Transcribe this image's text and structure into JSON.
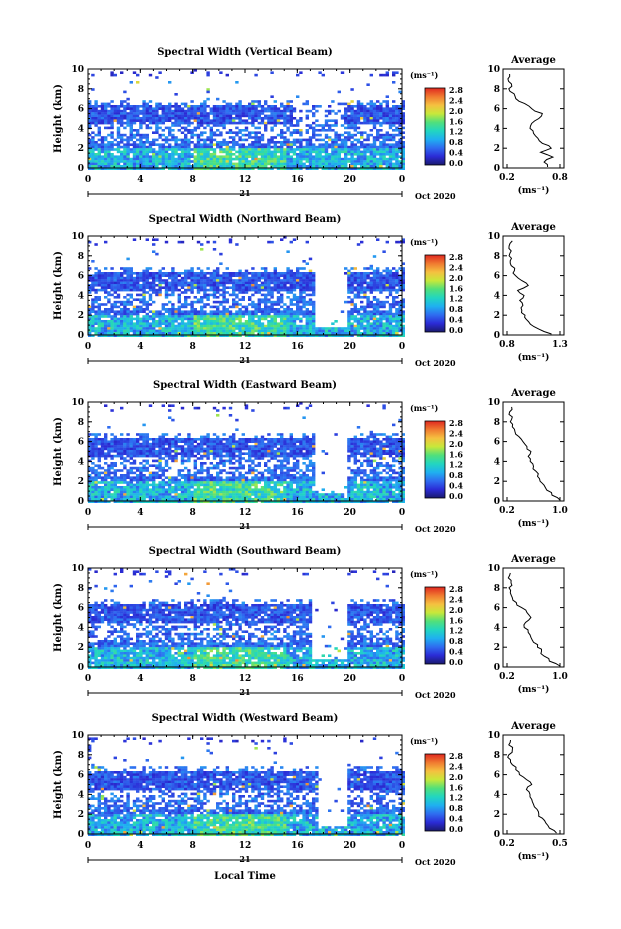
{
  "figure": {
    "xlabel": "Local Time",
    "date_label": "Oct 2020",
    "day_label": "21",
    "colorbar_unit": "(ms⁻¹)",
    "colorbar_ticks": [
      "0.0",
      "0.4",
      "0.8",
      "1.2",
      "1.6",
      "2.0",
      "2.4",
      "2.8"
    ],
    "colorbar_stops": [
      "#1a1a6e",
      "#2b2bd6",
      "#2f6cf0",
      "#1fb0f0",
      "#22d6c0",
      "#52e07a",
      "#c8e83a",
      "#f5c040",
      "#f07a30",
      "#e02820"
    ]
  },
  "chart_data": [
    {
      "type": "heatmap",
      "title": "Spectral Width (Vertical Beam)",
      "ylabel": "Height (km)",
      "x_ticks": [
        "0",
        "4",
        "8",
        "12",
        "16",
        "20",
        "0"
      ],
      "y_ticks": [
        "0",
        "2",
        "4",
        "6",
        "8",
        "10"
      ],
      "xlim": [
        0,
        24
      ],
      "ylim": [
        0,
        10
      ],
      "clim": [
        0,
        3.0
      ],
      "gap": [
        15.8,
        15.8
      ],
      "avg_title": "Average",
      "avg_xlabel": "(ms⁻¹)",
      "avg_x_ticks": [
        "0.2",
        "0.8"
      ],
      "avg_xlim": [
        0.2,
        0.8
      ],
      "average_profile": [
        [
          0.66,
          0.1
        ],
        [
          0.62,
          0.6
        ],
        [
          0.72,
          1.1
        ],
        [
          0.58,
          1.6
        ],
        [
          0.7,
          2.0
        ],
        [
          0.6,
          2.5
        ],
        [
          0.55,
          3.0
        ],
        [
          0.5,
          3.5
        ],
        [
          0.46,
          4.0
        ],
        [
          0.48,
          4.5
        ],
        [
          0.56,
          5.0
        ],
        [
          0.6,
          5.5
        ],
        [
          0.48,
          6.0
        ],
        [
          0.4,
          6.5
        ],
        [
          0.3,
          7.0
        ],
        [
          0.28,
          7.5
        ],
        [
          0.22,
          8.0
        ],
        [
          0.25,
          8.5
        ],
        [
          0.21,
          9.0
        ],
        [
          0.23,
          9.5
        ]
      ]
    },
    {
      "type": "heatmap",
      "title": "Spectral Width (Northward Beam)",
      "ylabel": "Height (km)",
      "x_ticks": [
        "0",
        "4",
        "8",
        "12",
        "16",
        "20",
        "0"
      ],
      "y_ticks": [
        "0",
        "2",
        "4",
        "6",
        "8",
        "10"
      ],
      "xlim": [
        0,
        24
      ],
      "ylim": [
        0,
        10
      ],
      "clim": [
        0,
        3.0
      ],
      "gap": [
        17.2,
        19.6
      ],
      "avg_title": "Average",
      "avg_xlabel": "(ms⁻¹)",
      "avg_x_ticks": [
        "0.8",
        "1.3"
      ],
      "avg_xlim": [
        0.8,
        1.3
      ],
      "average_profile": [
        [
          1.22,
          0.1
        ],
        [
          1.1,
          0.6
        ],
        [
          1.02,
          1.1
        ],
        [
          0.98,
          1.6
        ],
        [
          0.97,
          2.0
        ],
        [
          0.94,
          2.5
        ],
        [
          0.95,
          3.0
        ],
        [
          0.92,
          3.5
        ],
        [
          0.96,
          4.0
        ],
        [
          0.9,
          4.5
        ],
        [
          1.0,
          5.0
        ],
        [
          0.94,
          5.5
        ],
        [
          0.88,
          6.0
        ],
        [
          0.87,
          6.5
        ],
        [
          0.84,
          7.0
        ],
        [
          0.83,
          7.5
        ],
        [
          0.82,
          8.0
        ],
        [
          0.84,
          8.5
        ],
        [
          0.82,
          9.0
        ],
        [
          0.85,
          9.5
        ]
      ]
    },
    {
      "type": "heatmap",
      "title": "Spectral Width (Eastward Beam)",
      "ylabel": "Height (km)",
      "x_ticks": [
        "0",
        "4",
        "8",
        "12",
        "16",
        "20",
        "0"
      ],
      "y_ticks": [
        "0",
        "2",
        "4",
        "6",
        "8",
        "10"
      ],
      "xlim": [
        0,
        24
      ],
      "ylim": [
        0,
        10
      ],
      "clim": [
        0,
        3.0
      ],
      "gap": [
        17.2,
        19.8
      ],
      "avg_title": "Average",
      "avg_xlabel": "(ms⁻¹)",
      "avg_x_ticks": [
        "0.2",
        "1.0"
      ],
      "avg_xlim": [
        0.2,
        1.0
      ],
      "average_profile": [
        [
          1.0,
          0.1
        ],
        [
          0.88,
          0.6
        ],
        [
          0.8,
          1.1
        ],
        [
          0.76,
          1.6
        ],
        [
          0.7,
          2.0
        ],
        [
          0.66,
          2.5
        ],
        [
          0.64,
          3.0
        ],
        [
          0.6,
          3.5
        ],
        [
          0.55,
          4.0
        ],
        [
          0.52,
          4.5
        ],
        [
          0.56,
          5.0
        ],
        [
          0.5,
          5.5
        ],
        [
          0.44,
          6.0
        ],
        [
          0.38,
          6.5
        ],
        [
          0.32,
          7.0
        ],
        [
          0.28,
          7.5
        ],
        [
          0.25,
          8.0
        ],
        [
          0.28,
          8.5
        ],
        [
          0.24,
          9.0
        ],
        [
          0.27,
          9.5
        ]
      ]
    },
    {
      "type": "heatmap",
      "title": "Spectral Width (Southward Beam)",
      "ylabel": "Height (km)",
      "x_ticks": [
        "0",
        "4",
        "8",
        "12",
        "16",
        "20",
        "0"
      ],
      "y_ticks": [
        "0",
        "2",
        "4",
        "6",
        "8",
        "10"
      ],
      "xlim": [
        0,
        24
      ],
      "ylim": [
        0,
        10
      ],
      "clim": [
        0,
        3.0
      ],
      "gap": [
        17.0,
        19.8
      ],
      "avg_title": "Average",
      "avg_xlabel": "(ms⁻¹)",
      "avg_x_ticks": [
        "0.2",
        "1.0"
      ],
      "avg_xlim": [
        0.2,
        1.0
      ],
      "average_profile": [
        [
          1.0,
          0.1
        ],
        [
          0.84,
          0.6
        ],
        [
          0.76,
          1.1
        ],
        [
          0.72,
          1.6
        ],
        [
          0.66,
          2.0
        ],
        [
          0.6,
          2.5
        ],
        [
          0.56,
          3.0
        ],
        [
          0.52,
          3.5
        ],
        [
          0.46,
          4.0
        ],
        [
          0.48,
          4.5
        ],
        [
          0.56,
          5.0
        ],
        [
          0.5,
          5.5
        ],
        [
          0.42,
          6.0
        ],
        [
          0.34,
          6.5
        ],
        [
          0.28,
          7.0
        ],
        [
          0.25,
          7.5
        ],
        [
          0.23,
          8.0
        ],
        [
          0.26,
          8.5
        ],
        [
          0.22,
          9.0
        ],
        [
          0.25,
          9.5
        ]
      ]
    },
    {
      "type": "heatmap",
      "title": "Spectral Width (Westward Beam)",
      "ylabel": "Height (km)",
      "x_ticks": [
        "0",
        "4",
        "8",
        "12",
        "16",
        "20",
        "0"
      ],
      "y_ticks": [
        "0",
        "2",
        "4",
        "6",
        "8",
        "10"
      ],
      "xlim": [
        0,
        24
      ],
      "ylim": [
        0,
        10
      ],
      "clim": [
        0,
        3.0
      ],
      "gap": [
        17.4,
        19.6
      ],
      "avg_title": "Average",
      "avg_xlabel": "(ms⁻¹)",
      "avg_x_ticks": [
        "0.2",
        "0.5"
      ],
      "avg_xlim": [
        0.2,
        0.5
      ],
      "average_profile": [
        [
          0.48,
          0.1
        ],
        [
          0.44,
          0.6
        ],
        [
          0.42,
          1.1
        ],
        [
          0.4,
          1.6
        ],
        [
          0.38,
          2.0
        ],
        [
          0.37,
          2.5
        ],
        [
          0.35,
          3.0
        ],
        [
          0.34,
          3.5
        ],
        [
          0.33,
          4.0
        ],
        [
          0.31,
          4.5
        ],
        [
          0.34,
          5.0
        ],
        [
          0.31,
          5.5
        ],
        [
          0.27,
          6.0
        ],
        [
          0.25,
          6.5
        ],
        [
          0.23,
          7.0
        ],
        [
          0.22,
          7.5
        ],
        [
          0.21,
          8.0
        ],
        [
          0.23,
          8.5
        ],
        [
          0.21,
          9.0
        ],
        [
          0.22,
          9.5
        ]
      ]
    }
  ]
}
